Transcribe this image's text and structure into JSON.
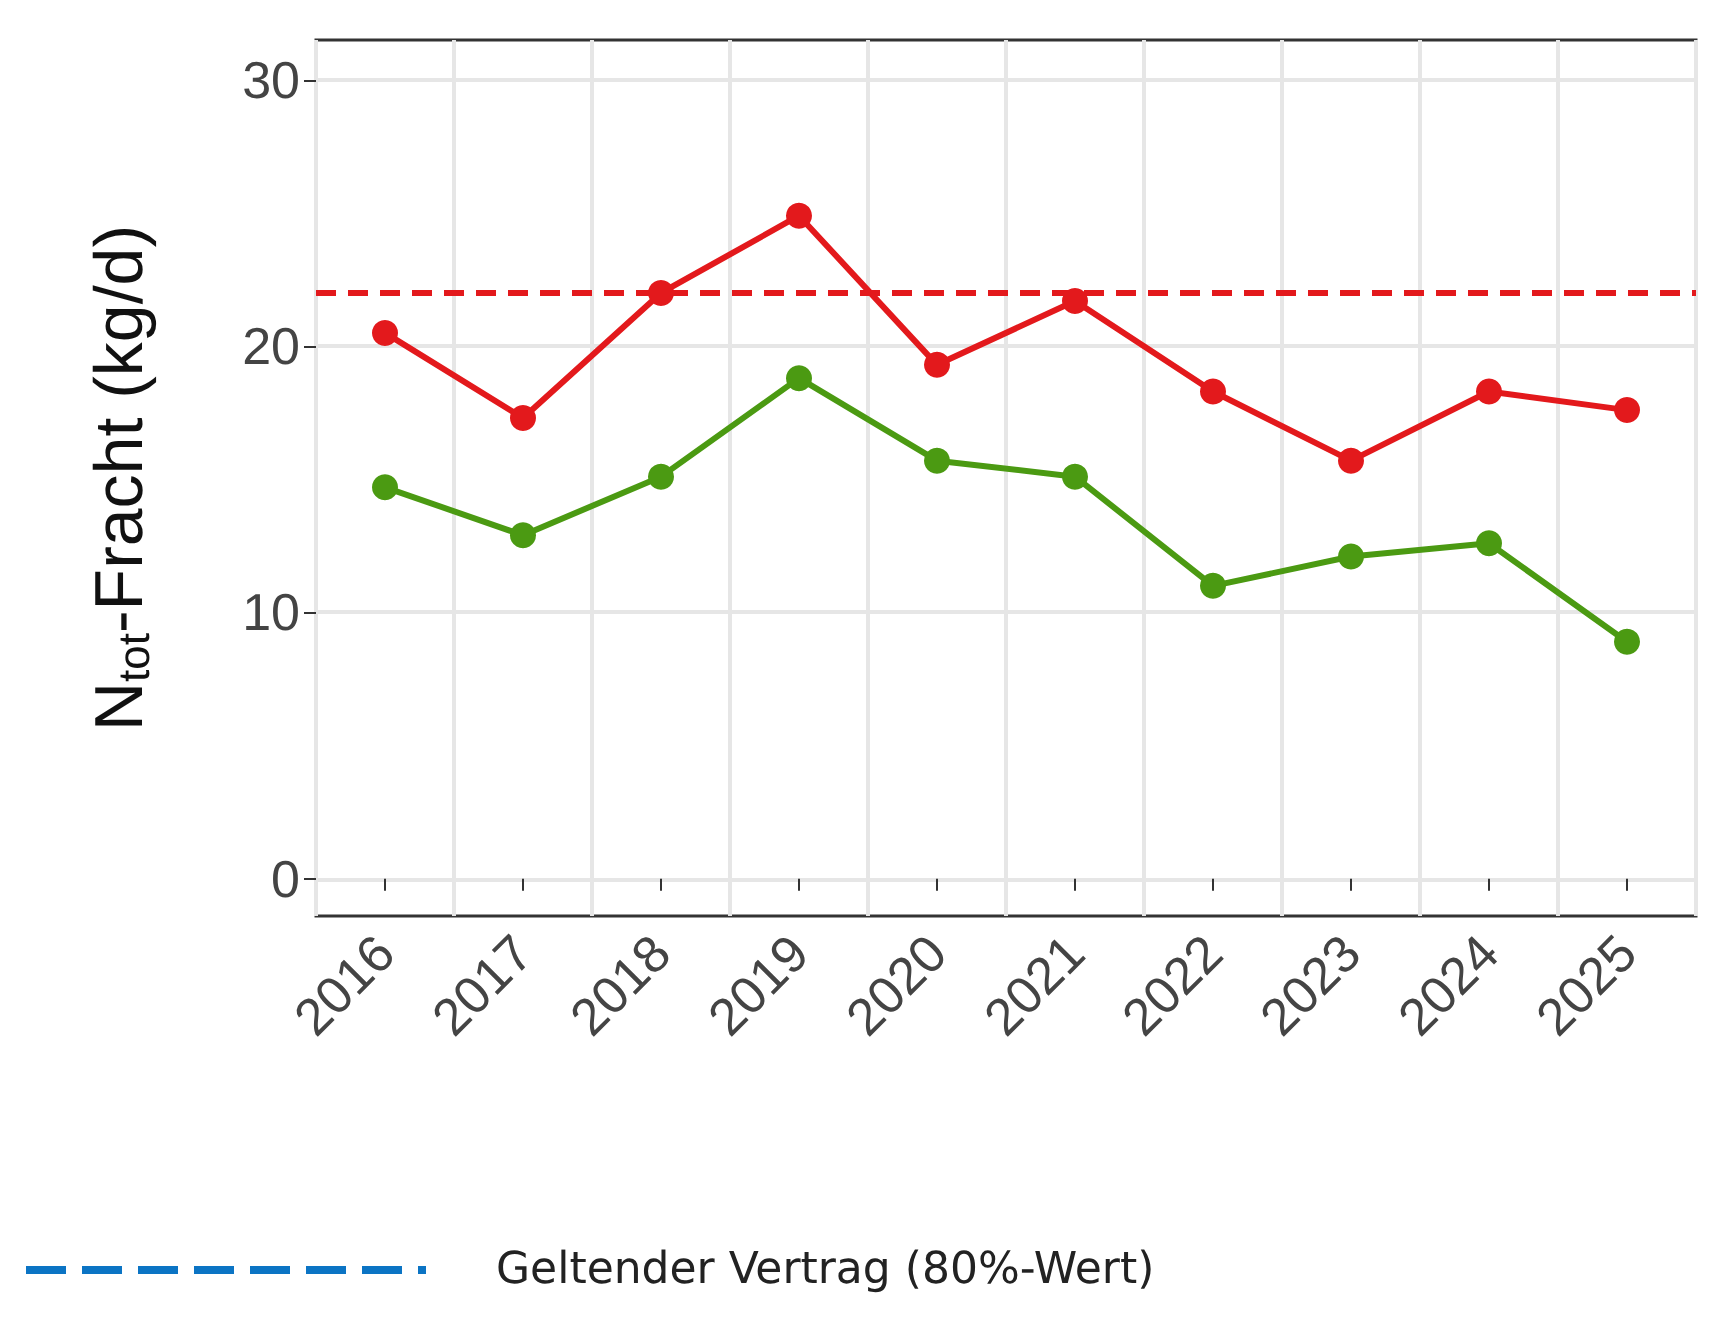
{
  "chart_data": {
    "type": "line",
    "ylabel": "N$_{tot}$-Fracht (kg/d)",
    "categories": [
      "2016",
      "2017",
      "2018",
      "2019",
      "2020",
      "2021",
      "2022",
      "2023",
      "2024",
      "2025"
    ],
    "series": [
      {
        "color": "#e3191c",
        "values": [
          20.5,
          17.3,
          22.0,
          24.9,
          19.3,
          21.7,
          18.3,
          15.7,
          18.3,
          17.6
        ]
      },
      {
        "color": "#4b9a12",
        "values": [
          14.7,
          12.9,
          15.1,
          18.8,
          15.7,
          15.1,
          11.0,
          12.1,
          12.6,
          8.9
        ]
      },
      {
        "name": "Geltender Vertrag (80%-Wert)",
        "color": "#0b74c4",
        "line_style": "dashed",
        "marker": "none",
        "values": [
          null,
          null,
          null,
          null,
          null,
          null,
          null,
          null,
          null,
          null
        ]
      }
    ],
    "ylim": [
      -1.4,
      31.5
    ],
    "yticks": [
      0,
      10,
      20,
      30
    ],
    "grid": true,
    "marker": "circle",
    "line_style": "solid",
    "legend": "bottom left",
    "ref_lines": [
      {
        "axis": "y",
        "value": 22,
        "color": "#e3191c",
        "line_style": "dashed"
      }
    ]
  }
}
